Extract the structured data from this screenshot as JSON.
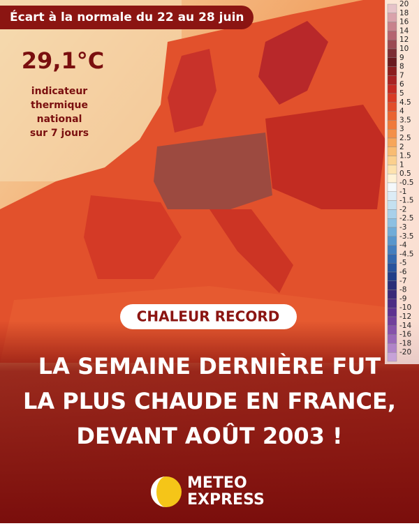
{
  "header": {
    "title": "Écart à la normale du 22 au 28 juin"
  },
  "indicator": {
    "value": "29,1°C",
    "lines": [
      "indicateur",
      "thermique",
      "national",
      "sur 7 jours"
    ]
  },
  "legend": {
    "items": [
      {
        "label": "20",
        "color": "#e6c3c9"
      },
      {
        "label": "18",
        "color": "#d9a2ab"
      },
      {
        "label": "16",
        "color": "#c8828c"
      },
      {
        "label": "14",
        "color": "#b46470"
      },
      {
        "label": "12",
        "color": "#9a4a52"
      },
      {
        "label": "10",
        "color": "#7d2e34"
      },
      {
        "label": "9",
        "color": "#6b1a1e"
      },
      {
        "label": "8",
        "color": "#8c1d1d"
      },
      {
        "label": "7",
        "color": "#a82222"
      },
      {
        "label": "6",
        "color": "#c42a22"
      },
      {
        "label": "5",
        "color": "#d83a24"
      },
      {
        "label": "4.5",
        "color": "#e24e2a"
      },
      {
        "label": "4",
        "color": "#ea6430"
      },
      {
        "label": "3.5",
        "color": "#f07a3a"
      },
      {
        "label": "3",
        "color": "#f49048"
      },
      {
        "label": "2.5",
        "color": "#f7a65a"
      },
      {
        "label": "2",
        "color": "#f9bc72"
      },
      {
        "label": "1.5",
        "color": "#fbd08e"
      },
      {
        "label": "1",
        "color": "#fde2ae"
      },
      {
        "label": "0.5",
        "color": "#fff2d6"
      },
      {
        "label": "-0.5",
        "color": "#f4f8fb"
      },
      {
        "label": "-1",
        "color": "#dcecf6"
      },
      {
        "label": "-1.5",
        "color": "#c4e0f0"
      },
      {
        "label": "-2",
        "color": "#a8d0ea"
      },
      {
        "label": "-2.5",
        "color": "#8cc0e2"
      },
      {
        "label": "-3",
        "color": "#70acd8"
      },
      {
        "label": "-3.5",
        "color": "#5896cc"
      },
      {
        "label": "-4",
        "color": "#447ebe"
      },
      {
        "label": "-4.5",
        "color": "#3468ae"
      },
      {
        "label": "-5",
        "color": "#28529c"
      },
      {
        "label": "-6",
        "color": "#223e88"
      },
      {
        "label": "-7",
        "color": "#2a2e78"
      },
      {
        "label": "-8",
        "color": "#3a2a78"
      },
      {
        "label": "-9",
        "color": "#4c2c84"
      },
      {
        "label": "-10",
        "color": "#5e3290"
      },
      {
        "label": "-12",
        "color": "#72409c"
      },
      {
        "label": "-14",
        "color": "#8652aa"
      },
      {
        "label": "-16",
        "color": "#9a68b8"
      },
      {
        "label": "-18",
        "color": "#b084c8"
      },
      {
        "label": "-20",
        "color": "#c6a2d8"
      }
    ]
  },
  "tag": "CHALEUR RECORD",
  "headline": [
    "LA SEMAINE DERNIÈRE FUT",
    "LA PLUS CHAUDE EN FRANCE,",
    "DEVANT AOÛT 2003 !"
  ],
  "logo": [
    "METEO",
    "EXPRESS"
  ]
}
